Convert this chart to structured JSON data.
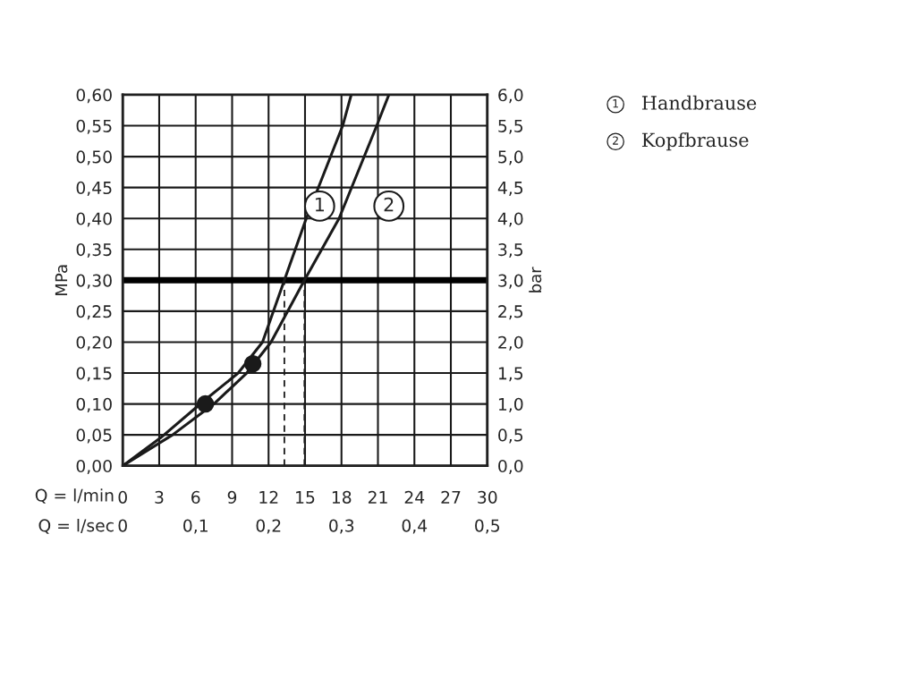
{
  "chart_data": {
    "type": "line",
    "xlabel": "Q = l/min",
    "x2label": "Q = l/sec",
    "ylabel": "MPa",
    "y2label": "bar",
    "xlim": [
      0,
      30
    ],
    "xticks": [
      0,
      3,
      6,
      9,
      12,
      15,
      18,
      21,
      24,
      27,
      30
    ],
    "x2lim": [
      0,
      0.5
    ],
    "x2ticks": [
      0,
      {
        "value": 0.1,
        "label": "0,1"
      },
      {
        "value": 0.2,
        "label": "0,2"
      },
      {
        "value": 0.3,
        "label": "0,3"
      },
      {
        "value": 0.4,
        "label": "0,4"
      },
      {
        "value": 0.5,
        "label": "0,5"
      }
    ],
    "ylim": [
      0,
      0.6
    ],
    "yticks": [
      {
        "value": 0,
        "label": "0,00"
      },
      {
        "value": 0.05,
        "label": "0,05"
      },
      {
        "value": 0.1,
        "label": "0,10"
      },
      {
        "value": 0.15,
        "label": "0,15"
      },
      {
        "value": 0.2,
        "label": "0,20"
      },
      {
        "value": 0.25,
        "label": "0,25"
      },
      {
        "value": 0.3,
        "label": "0,30"
      },
      {
        "value": 0.35,
        "label": "0,35"
      },
      {
        "value": 0.4,
        "label": "0,40"
      },
      {
        "value": 0.45,
        "label": "0,45"
      },
      {
        "value": 0.5,
        "label": "0,50"
      },
      {
        "value": 0.55,
        "label": "0,55"
      },
      {
        "value": 0.6,
        "label": "0,60"
      }
    ],
    "y2lim": [
      0,
      6
    ],
    "y2ticks": [
      {
        "value": 0,
        "label": "0,0"
      },
      {
        "value": 0.5,
        "label": "0,5"
      },
      {
        "value": 1,
        "label": "1,0"
      },
      {
        "value": 1.5,
        "label": "1,5"
      },
      {
        "value": 2,
        "label": "2,0"
      },
      {
        "value": 2.5,
        "label": "2,5"
      },
      {
        "value": 3,
        "label": "3,0"
      },
      {
        "value": 3.5,
        "label": "3,5"
      },
      {
        "value": 4,
        "label": "4,0"
      },
      {
        "value": 4.5,
        "label": "4,5"
      },
      {
        "value": 5,
        "label": "5,0"
      },
      {
        "value": 5.5,
        "label": "5,5"
      },
      {
        "value": 6,
        "label": "6,0"
      }
    ],
    "grid": true,
    "marker": "none",
    "line_style": "solid",
    "series": [
      {
        "color": "#1a1a1a",
        "x": [
          0,
          3.1,
          6.8,
          9.5,
          11.5,
          13.3,
          15.1,
          18.1,
          18.8
        ],
        "values": [
          0,
          0.045,
          0.107,
          0.15,
          0.2,
          0.3,
          0.4,
          0.55,
          0.6
        ]
      },
      {
        "color": "#1a1a1a",
        "x": [
          0,
          4.1,
          7.5,
          10.2,
          12.2,
          14.95,
          17.8,
          20.9,
          21.9
        ],
        "values": [
          0,
          0.05,
          0.1,
          0.15,
          0.2,
          0.3,
          0.4,
          0.55,
          0.6
        ]
      },
      {
        "type": "scatter",
        "color": "#1a1a1a",
        "marker": "circle",
        "x": [
          6.8
        ],
        "values": [
          0.1
        ]
      },
      {
        "type": "scatter",
        "color": "#1a1a1a",
        "marker": "circle",
        "x": [
          10.7
        ],
        "values": [
          0.165
        ]
      },
      {
        "color": "#1a1a1a",
        "line_style": "dashed",
        "x": [
          13.3,
          13.3
        ],
        "values": [
          0,
          0.3
        ]
      },
      {
        "color": "#1a1a1a",
        "line_style": "dashed",
        "x": [
          14.95,
          14.95
        ],
        "values": [
          0,
          0.3
        ]
      }
    ],
    "ref_lines": [
      {
        "axis": "y",
        "value": 0.3,
        "color": "#000000"
      }
    ],
    "annotations": [
      {
        "text": "1",
        "x": 16.2,
        "y": 0.42
      },
      {
        "text": "2",
        "x": 21.9,
        "y": 0.42
      },
      "1",
      "Handbrause",
      "2",
      "Kopfbrause"
    ]
  }
}
